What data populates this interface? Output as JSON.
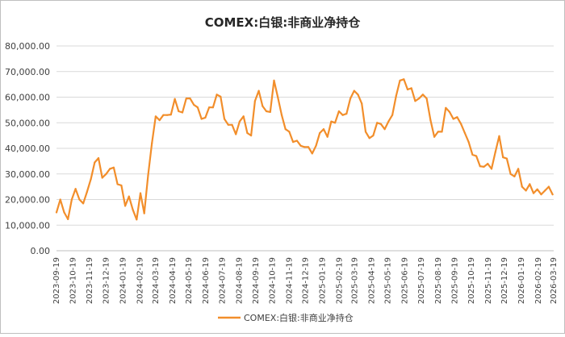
{
  "chart_data": {
    "type": "line",
    "title": "COMEX:白银:非商业净持仓",
    "legend": {
      "label": "COMEX:白银:非商业净持仓",
      "position": "bottom"
    },
    "series_color": "#F28E2B",
    "ylim": [
      0,
      80000
    ],
    "yticks": [
      "0.00",
      "10,000.00",
      "20,000.00",
      "30,000.00",
      "40,000.00",
      "50,000.00",
      "60,000.00",
      "70,000.00",
      "80,000.00"
    ],
    "xticks": [
      "2023-09-19",
      "2023-10-19",
      "2023-11-19",
      "2023-12-19",
      "2024-01-19",
      "2024-02-19",
      "2024-03-19",
      "2024-04-19",
      "2024-05-19",
      "2024-06-19",
      "2024-07-19",
      "2024-08-19",
      "2024-09-19",
      "2024-10-19",
      "2024-11-19",
      "2024-12-19",
      "2025-01-19",
      "2025-02-19",
      "2025-03-19",
      "2025-04-19",
      "2025-05-19",
      "2025-06-19",
      "2025-07-19",
      "2025-08-19",
      "2025-09-19",
      "2025-10-19",
      "2025-11-19",
      "2025-12-19",
      "2026-01-19",
      "2026-02-19",
      "2026-03-19"
    ],
    "x": [
      "2023-09-19",
      "2023-09-26",
      "2023-10-03",
      "2023-10-10",
      "2023-10-17",
      "2023-10-24",
      "2023-10-31",
      "2023-11-07",
      "2023-11-14",
      "2023-11-21",
      "2023-11-28",
      "2023-12-05",
      "2023-12-12",
      "2023-12-19",
      "2023-12-26",
      "2024-01-02",
      "2024-01-09",
      "2024-01-16",
      "2024-01-23",
      "2024-01-30",
      "2024-02-06",
      "2024-02-13",
      "2024-02-20",
      "2024-02-27",
      "2024-03-05",
      "2024-03-12",
      "2024-03-19",
      "2024-03-26",
      "2024-04-02",
      "2024-04-09",
      "2024-04-16",
      "2024-04-23",
      "2024-04-30",
      "2024-05-07",
      "2024-05-14",
      "2024-05-21",
      "2024-05-28",
      "2024-06-04",
      "2024-06-11",
      "2024-06-18",
      "2024-06-25",
      "2024-07-02",
      "2024-07-09",
      "2024-07-16",
      "2024-07-23",
      "2024-07-30",
      "2024-08-06",
      "2024-08-13",
      "2024-08-20",
      "2024-08-27",
      "2024-09-03",
      "2024-09-10",
      "2024-09-17",
      "2024-09-24",
      "2024-10-01",
      "2024-10-08",
      "2024-10-15",
      "2024-10-22",
      "2024-10-29",
      "2024-11-05",
      "2024-11-12",
      "2024-11-19",
      "2024-11-26",
      "2024-12-03",
      "2024-12-10",
      "2024-12-17",
      "2024-12-24",
      "2024-12-31",
      "2025-01-07",
      "2025-01-14",
      "2025-01-21",
      "2025-01-28",
      "2025-02-04",
      "2025-02-11",
      "2025-02-18",
      "2025-02-25",
      "2025-03-04",
      "2025-03-11",
      "2025-03-18",
      "2025-03-25",
      "2025-04-01",
      "2025-04-08",
      "2025-04-15",
      "2025-04-22",
      "2025-04-29",
      "2025-05-06",
      "2025-05-13",
      "2025-05-20",
      "2025-05-27",
      "2025-06-03",
      "2025-06-10",
      "2025-06-17",
      "2025-06-24",
      "2025-07-01",
      "2025-07-08",
      "2025-07-15",
      "2025-07-22",
      "2025-07-29",
      "2025-08-05",
      "2025-08-12",
      "2025-08-19",
      "2025-08-26",
      "2025-09-02",
      "2025-09-09",
      "2025-09-16",
      "2025-09-23",
      "2025-09-30",
      "2025-10-07",
      "2025-10-14",
      "2025-10-21",
      "2025-10-28",
      "2025-11-04",
      "2025-11-11",
      "2025-11-18",
      "2025-11-25",
      "2025-12-02",
      "2025-12-09",
      "2025-12-16",
      "2025-12-23",
      "2025-12-30",
      "2026-01-06",
      "2026-01-13",
      "2026-01-20",
      "2026-01-27",
      "2026-02-03",
      "2026-02-10",
      "2026-02-17",
      "2026-02-24",
      "2026-03-03",
      "2026-03-10",
      "2026-03-17"
    ],
    "y": [
      15000,
      20000,
      15000,
      12300,
      20000,
      24200,
      20000,
      18500,
      23000,
      28000,
      34500,
      36200,
      28500,
      30000,
      32000,
      32500,
      26000,
      25500,
      17500,
      21200,
      16000,
      12200,
      22500,
      14600,
      29500,
      42000,
      52500,
      51000,
      53000,
      53000,
      53200,
      59300,
      54500,
      54000,
      59500,
      59500,
      57000,
      56000,
      51500,
      52000,
      56000,
      56000,
      61000,
      60200,
      51500,
      49200,
      49200,
      45500,
      50500,
      52500,
      46000,
      45000,
      58500,
      62500,
      56500,
      54500,
      54200,
      66500,
      60000,
      53000,
      47500,
      46500,
      42500,
      43000,
      41000,
      40500,
      40500,
      38000,
      41000,
      46000,
      47500,
      44500,
      50500,
      50000,
      54500,
      53000,
      53500,
      59500,
      62500,
      61000,
      57500,
      46500,
      44000,
      45000,
      50000,
      49500,
      47500,
      50500,
      53000,
      60500,
      66500,
      67000,
      63000,
      63500,
      58500,
      59500,
      61000,
      59500,
      51000,
      44500,
      46500,
      46500,
      55800,
      54200,
      51500,
      52200,
      49500,
      46000,
      42500,
      37500,
      37000,
      33000,
      32800,
      34000,
      32000,
      38500,
      44800,
      36500,
      36000,
      30000,
      29000,
      32000,
      25000,
      23500,
      26000,
      22500,
      24000,
      22000,
      23500,
      25000,
      22000
    ]
  }
}
